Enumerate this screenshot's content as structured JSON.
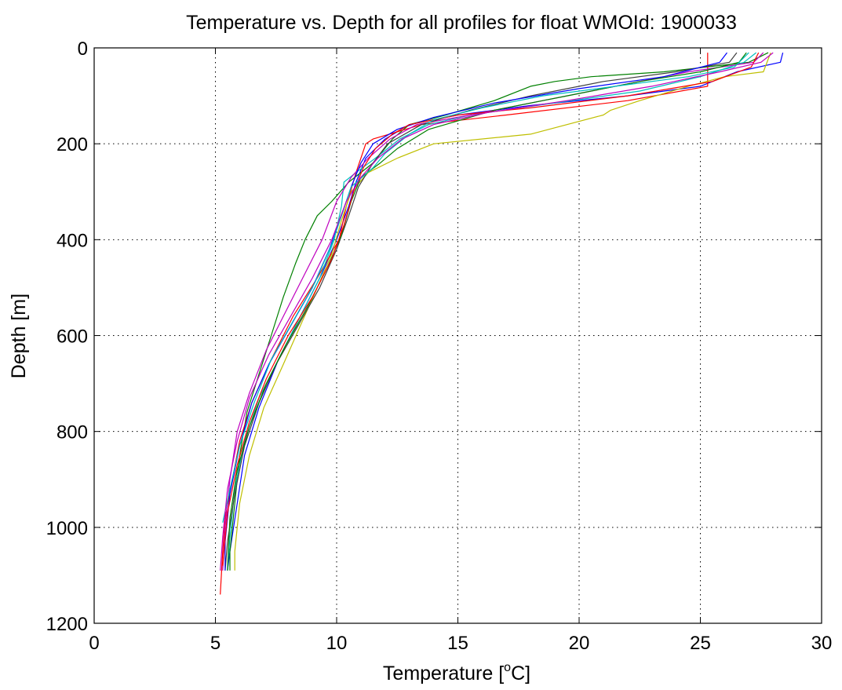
{
  "chart_data": {
    "type": "line",
    "title": "Temperature vs. Depth for all profiles for float WMOId: 1900033",
    "xlabel_main": "Temperature [",
    "xlabel_sup": "o",
    "xlabel_end": "C]",
    "ylabel": "Depth [m]",
    "xlim": [
      0,
      30
    ],
    "ylim": [
      0,
      1200
    ],
    "y_reversed": true,
    "grid": true,
    "x_ticks": [
      0,
      5,
      10,
      15,
      20,
      25,
      30
    ],
    "y_ticks": [
      0,
      200,
      400,
      600,
      800,
      1000,
      1200
    ],
    "x_tick_labels": [
      "0",
      "5",
      "10",
      "15",
      "20",
      "25",
      "30"
    ],
    "y_tick_labels": [
      "0",
      "200",
      "400",
      "600",
      "800",
      "1000",
      "1200"
    ],
    "series": [
      {
        "color": "#0000ff",
        "points": [
          [
            28.4,
            10
          ],
          [
            28.3,
            30
          ],
          [
            26.5,
            50
          ],
          [
            25.0,
            80
          ],
          [
            22.0,
            100
          ],
          [
            18.0,
            120
          ],
          [
            15.0,
            140
          ],
          [
            13.0,
            160
          ],
          [
            12.0,
            190
          ],
          [
            11.2,
            230
          ],
          [
            10.8,
            280
          ],
          [
            10.5,
            330
          ],
          [
            10.0,
            400
          ],
          [
            9.4,
            470
          ],
          [
            8.6,
            550
          ],
          [
            7.6,
            650
          ],
          [
            6.8,
            750
          ],
          [
            6.2,
            850
          ],
          [
            5.9,
            950
          ],
          [
            5.6,
            1050
          ],
          [
            5.5,
            1090
          ]
        ]
      },
      {
        "color": "#008000",
        "points": [
          [
            27.8,
            10
          ],
          [
            27.0,
            30
          ],
          [
            23.5,
            50
          ],
          [
            20.5,
            60
          ],
          [
            19.0,
            70
          ],
          [
            18.0,
            80
          ],
          [
            16.5,
            110
          ],
          [
            14.5,
            140
          ],
          [
            13.0,
            160
          ],
          [
            12.3,
            190
          ],
          [
            11.5,
            240
          ],
          [
            10.5,
            280
          ],
          [
            9.8,
            320
          ],
          [
            9.2,
            350
          ],
          [
            8.7,
            400
          ],
          [
            8.3,
            450
          ],
          [
            7.8,
            520
          ],
          [
            7.3,
            600
          ],
          [
            6.8,
            680
          ],
          [
            6.3,
            760
          ],
          [
            6.0,
            850
          ],
          [
            5.8,
            950
          ],
          [
            5.6,
            1050
          ],
          [
            5.6,
            1090
          ]
        ]
      },
      {
        "color": "#ff0000",
        "points": [
          [
            25.3,
            10
          ],
          [
            25.3,
            60
          ],
          [
            25.3,
            80
          ],
          [
            22.0,
            110
          ],
          [
            17.0,
            140
          ],
          [
            13.5,
            160
          ],
          [
            11.5,
            190
          ],
          [
            11.2,
            200
          ],
          [
            10.8,
            260
          ],
          [
            10.4,
            330
          ],
          [
            10.1,
            400
          ],
          [
            9.2,
            480
          ],
          [
            8.2,
            560
          ],
          [
            7.3,
            650
          ],
          [
            6.5,
            740
          ],
          [
            6.0,
            820
          ],
          [
            5.7,
            900
          ],
          [
            5.4,
            980
          ],
          [
            5.3,
            1050
          ],
          [
            5.2,
            1140
          ]
        ]
      },
      {
        "color": "#00bfbf",
        "points": [
          [
            27.3,
            10
          ],
          [
            26.8,
            30
          ],
          [
            25.0,
            60
          ],
          [
            22.5,
            90
          ],
          [
            19.0,
            115
          ],
          [
            15.5,
            140
          ],
          [
            13.8,
            160
          ],
          [
            12.6,
            190
          ],
          [
            11.6,
            230
          ],
          [
            10.8,
            260
          ],
          [
            10.3,
            280
          ],
          [
            10.2,
            330
          ],
          [
            9.9,
            400
          ],
          [
            9.3,
            480
          ],
          [
            8.5,
            560
          ],
          [
            7.6,
            650
          ],
          [
            6.8,
            730
          ],
          [
            6.2,
            820
          ],
          [
            5.8,
            920
          ],
          [
            5.6,
            1020
          ],
          [
            5.5,
            1090
          ]
        ]
      },
      {
        "color": "#bf00bf",
        "points": [
          [
            27.6,
            10
          ],
          [
            27.2,
            30
          ],
          [
            24.5,
            50
          ],
          [
            21.5,
            80
          ],
          [
            18.5,
            110
          ],
          [
            15.5,
            140
          ],
          [
            13.3,
            160
          ],
          [
            12.2,
            190
          ],
          [
            11.3,
            230
          ],
          [
            10.6,
            270
          ],
          [
            10.0,
            320
          ],
          [
            9.4,
            400
          ],
          [
            8.7,
            470
          ],
          [
            7.9,
            550
          ],
          [
            7.1,
            630
          ],
          [
            6.4,
            720
          ],
          [
            5.9,
            800
          ],
          [
            5.6,
            900
          ],
          [
            5.4,
            1000
          ],
          [
            5.3,
            1090
          ]
        ]
      },
      {
        "color": "#bfbf00",
        "points": [
          [
            27.9,
            10
          ],
          [
            27.6,
            50
          ],
          [
            26.0,
            60
          ],
          [
            24.5,
            80
          ],
          [
            22.5,
            110
          ],
          [
            21.3,
            130
          ],
          [
            21.0,
            140
          ],
          [
            18.0,
            180
          ],
          [
            14.0,
            200
          ],
          [
            12.5,
            230
          ],
          [
            11.3,
            260
          ],
          [
            10.6,
            300
          ],
          [
            10.2,
            360
          ],
          [
            9.8,
            430
          ],
          [
            9.2,
            500
          ],
          [
            8.5,
            580
          ],
          [
            7.8,
            660
          ],
          [
            7.0,
            750
          ],
          [
            6.4,
            850
          ],
          [
            6.0,
            950
          ],
          [
            5.8,
            1050
          ],
          [
            5.8,
            1090
          ]
        ]
      },
      {
        "color": "#404040",
        "points": [
          [
            26.5,
            10
          ],
          [
            26.2,
            30
          ],
          [
            24.0,
            50
          ],
          [
            21.0,
            70
          ],
          [
            18.0,
            100
          ],
          [
            15.5,
            130
          ],
          [
            13.5,
            160
          ],
          [
            12.1,
            200
          ],
          [
            11.5,
            240
          ],
          [
            10.9,
            290
          ],
          [
            10.5,
            350
          ],
          [
            10.0,
            420
          ],
          [
            9.3,
            500
          ],
          [
            8.4,
            580
          ],
          [
            7.5,
            660
          ],
          [
            6.8,
            740
          ],
          [
            6.2,
            830
          ],
          [
            5.8,
            930
          ],
          [
            5.5,
            1030
          ],
          [
            5.4,
            1090
          ]
        ]
      },
      {
        "color": "#0000ff",
        "points": [
          [
            26.1,
            10
          ],
          [
            25.8,
            30
          ],
          [
            23.5,
            60
          ],
          [
            20.0,
            85
          ],
          [
            16.5,
            115
          ],
          [
            14.0,
            145
          ],
          [
            12.5,
            170
          ],
          [
            11.5,
            200
          ],
          [
            11.0,
            240
          ],
          [
            10.6,
            290
          ],
          [
            10.2,
            350
          ],
          [
            9.7,
            420
          ],
          [
            9.0,
            500
          ],
          [
            8.1,
            580
          ],
          [
            7.2,
            660
          ],
          [
            6.5,
            740
          ],
          [
            6.0,
            830
          ],
          [
            5.6,
            930
          ],
          [
            5.4,
            1030
          ],
          [
            5.4,
            1090
          ]
        ]
      },
      {
        "color": "#008000",
        "points": [
          [
            26.9,
            10
          ],
          [
            26.6,
            30
          ],
          [
            25.0,
            50
          ],
          [
            22.5,
            70
          ],
          [
            19.5,
            100
          ],
          [
            16.5,
            130
          ],
          [
            13.8,
            170
          ],
          [
            12.5,
            210
          ],
          [
            11.8,
            240
          ],
          [
            11.0,
            270
          ],
          [
            10.6,
            320
          ],
          [
            10.2,
            390
          ],
          [
            9.6,
            460
          ],
          [
            8.8,
            540
          ],
          [
            7.9,
            620
          ],
          [
            7.1,
            700
          ],
          [
            6.4,
            790
          ],
          [
            5.9,
            880
          ],
          [
            5.6,
            980
          ],
          [
            5.5,
            1090
          ]
        ]
      },
      {
        "color": "#ff0000",
        "points": [
          [
            27.4,
            10
          ],
          [
            27.1,
            40
          ],
          [
            25.5,
            70
          ],
          [
            22.0,
            100
          ],
          [
            18.0,
            125
          ],
          [
            15.0,
            140
          ],
          [
            13.0,
            160
          ],
          [
            12.3,
            180
          ],
          [
            11.6,
            210
          ],
          [
            11.1,
            250
          ],
          [
            10.7,
            300
          ],
          [
            10.3,
            370
          ],
          [
            9.8,
            440
          ],
          [
            9.0,
            520
          ],
          [
            8.0,
            600
          ],
          [
            7.1,
            690
          ],
          [
            6.4,
            780
          ],
          [
            5.9,
            870
          ],
          [
            5.5,
            970
          ],
          [
            5.3,
            1080
          ]
        ]
      },
      {
        "color": "#00bfbf",
        "points": [
          [
            27.0,
            10
          ],
          [
            26.4,
            40
          ],
          [
            24.5,
            60
          ],
          [
            21.5,
            80
          ],
          [
            18.5,
            100
          ],
          [
            16.0,
            125
          ],
          [
            14.0,
            150
          ],
          [
            13.0,
            180
          ],
          [
            12.5,
            200
          ],
          [
            12.0,
            220
          ],
          [
            11.5,
            250
          ],
          [
            10.6,
            290
          ],
          [
            10.2,
            350
          ],
          [
            9.8,
            410
          ],
          [
            9.1,
            490
          ],
          [
            8.2,
            570
          ],
          [
            7.3,
            650
          ],
          [
            6.6,
            740
          ],
          [
            6.0,
            830
          ],
          [
            5.6,
            920
          ],
          [
            5.3,
            990
          ]
        ]
      },
      {
        "color": "#bf00bf",
        "points": [
          [
            28.0,
            10
          ],
          [
            27.5,
            30
          ],
          [
            25.8,
            50
          ],
          [
            23.0,
            80
          ],
          [
            19.5,
            110
          ],
          [
            16.2,
            135
          ],
          [
            14.0,
            160
          ],
          [
            12.7,
            190
          ],
          [
            11.7,
            230
          ],
          [
            11.0,
            270
          ],
          [
            10.4,
            320
          ],
          [
            9.8,
            400
          ],
          [
            9.0,
            480
          ],
          [
            8.1,
            560
          ],
          [
            7.2,
            640
          ],
          [
            6.4,
            730
          ],
          [
            5.9,
            820
          ],
          [
            5.5,
            920
          ],
          [
            5.3,
            1020
          ],
          [
            5.2,
            1090
          ]
        ]
      }
    ]
  }
}
